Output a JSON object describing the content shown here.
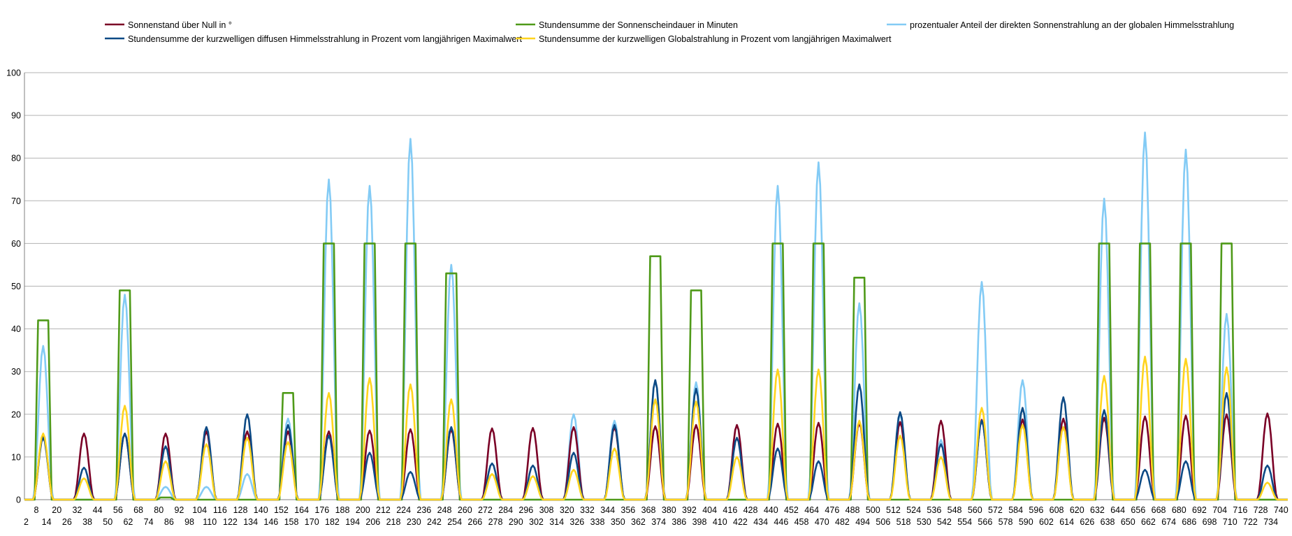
{
  "chart_data": {
    "type": "line",
    "title": "",
    "xlabel": "",
    "ylabel": "",
    "xlim": [
      1,
      744
    ],
    "ylim": [
      0,
      100
    ],
    "yticks": [
      0,
      10,
      20,
      30,
      40,
      50,
      60,
      70,
      80,
      90,
      100
    ],
    "grid": true,
    "legend_position": "top",
    "x_tick_labels_top_row": [
      8,
      20,
      32,
      44,
      56,
      68,
      80,
      92,
      104,
      116,
      128,
      140,
      152,
      164,
      176,
      188,
      200,
      212,
      224,
      236,
      248,
      260,
      272,
      284,
      296,
      308,
      320,
      332,
      344,
      356,
      368,
      380,
      392,
      404,
      416,
      428,
      440,
      452,
      464,
      476,
      488,
      500,
      512,
      524,
      536,
      548,
      560,
      572,
      584,
      596,
      608,
      620,
      632,
      644,
      656,
      668,
      680,
      692,
      704,
      716,
      728,
      740
    ],
    "x_tick_labels_bottom_row": [
      2,
      14,
      26,
      38,
      50,
      62,
      74,
      86,
      98,
      110,
      122,
      134,
      146,
      158,
      170,
      182,
      194,
      206,
      218,
      230,
      242,
      254,
      266,
      278,
      290,
      302,
      314,
      326,
      338,
      350,
      362,
      374,
      386,
      398,
      410,
      422,
      434,
      446,
      458,
      470,
      482,
      494,
      506,
      518,
      530,
      542,
      554,
      566,
      578,
      590,
      602,
      614,
      626,
      638,
      650,
      662,
      674,
      686,
      698,
      710,
      722,
      734
    ],
    "hour_of_day_offset": 12,
    "series": [
      {
        "name": "Sonnenstand über Null in °",
        "color": "#7a0026",
        "shape": "bell",
        "daily_peaks": [
          15,
          15.5,
          15.5,
          15.5,
          16,
          16,
          16,
          16,
          16.2,
          16.5,
          16.5,
          16.7,
          16.8,
          17,
          17,
          17.2,
          17.5,
          17.5,
          17.8,
          18,
          18,
          18.2,
          18.5,
          18.7,
          18.8,
          19,
          19.2,
          19.5,
          19.7,
          20,
          20.2
        ]
      },
      {
        "name": "Stundensumme der kurzwelligen diffusen Himmelsstrahlung in Prozent vom langjährigen Maximalwert",
        "color": "#0d4a85",
        "shape": "bell",
        "daily_peaks": [
          14.5,
          7.5,
          15.5,
          12.5,
          17,
          20,
          17.5,
          15,
          11,
          6.5,
          17,
          8.5,
          8,
          11,
          17.5,
          28,
          26,
          14.5,
          12,
          9,
          27,
          20.5,
          13,
          18.5,
          21.5,
          24,
          21,
          7,
          9,
          25,
          8
        ]
      },
      {
        "name": "Stundensumme der Sonnenscheindauer in Minuten",
        "color": "#4f9a19",
        "shape": "plateau",
        "daily_peaks": [
          42,
          0,
          49,
          0.5,
          0,
          0,
          25,
          60,
          60,
          60,
          53,
          0,
          0,
          0,
          0,
          57,
          49,
          0,
          60,
          60,
          52,
          0,
          0,
          0,
          0,
          0,
          60,
          60,
          60,
          60,
          0
        ]
      },
      {
        "name": "Stundensumme der kurzwelligen Globalstrahlung in Prozent vom langjährigen Maximalwert",
        "color": "#ffd41e",
        "shape": "bell",
        "daily_peaks": [
          15.5,
          5,
          22,
          9,
          13,
          14.5,
          13.5,
          25,
          28.5,
          27,
          23.5,
          6,
          5.5,
          7,
          12,
          23.5,
          23,
          10,
          30.5,
          30.5,
          18.5,
          15,
          10,
          21.5,
          17.5,
          17,
          29,
          33.5,
          33,
          31,
          4
        ]
      },
      {
        "name": "prozentualer Anteil der direkten Sonnenstrahlung an der globalen Himmelsstrahlung",
        "color": "#83cbf5",
        "shape": "bell",
        "daily_peaks": [
          36,
          0,
          48,
          3,
          3,
          6,
          19,
          75,
          73.5,
          84.5,
          55,
          0,
          0,
          20,
          18.5,
          28,
          27.5,
          0,
          73.5,
          79,
          46,
          20,
          14,
          51,
          28,
          17,
          70.5,
          86,
          82,
          43.5,
          0
        ]
      }
    ]
  }
}
